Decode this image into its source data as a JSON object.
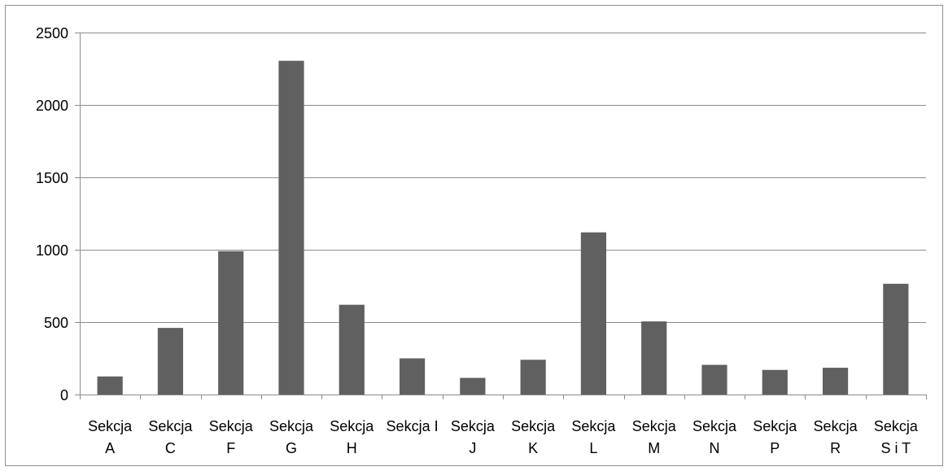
{
  "chart_data": {
    "type": "bar",
    "title": "",
    "xlabel": "",
    "ylabel": "",
    "ylim": [
      0,
      2500
    ],
    "yticks": [
      0,
      500,
      1000,
      1500,
      2000,
      2500
    ],
    "grid": "horizontal",
    "legend": "none",
    "bar_color": "#606060",
    "categories": [
      [
        "Sekcja",
        "A"
      ],
      [
        "Sekcja",
        "C"
      ],
      [
        "Sekcja",
        "F"
      ],
      [
        "Sekcja",
        "G"
      ],
      [
        "Sekcja",
        "H"
      ],
      [
        "Sekcja I",
        ""
      ],
      [
        "Sekcja",
        "J"
      ],
      [
        "Sekcja",
        "K"
      ],
      [
        "Sekcja",
        "L"
      ],
      [
        "Sekcja",
        "M"
      ],
      [
        "Sekcja",
        "N"
      ],
      [
        "Sekcja",
        "P"
      ],
      [
        "Sekcja",
        "R"
      ],
      [
        "Sekcja",
        "S i T"
      ]
    ],
    "values": [
      125,
      460,
      990,
      2305,
      620,
      250,
      115,
      240,
      1120,
      505,
      205,
      170,
      185,
      765
    ]
  }
}
